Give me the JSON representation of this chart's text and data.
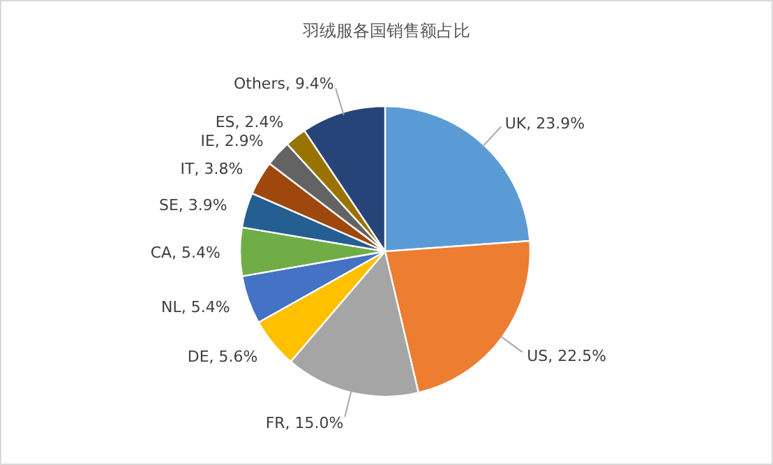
{
  "chart_data": {
    "type": "pie",
    "title": "羽绒服各国销售额占比",
    "categories": [
      "UK",
      "US",
      "FR",
      "DE",
      "NL",
      "CA",
      "SE",
      "IT",
      "IE",
      "ES",
      "Others"
    ],
    "values": [
      23.9,
      22.5,
      15.0,
      5.6,
      5.4,
      5.4,
      3.9,
      3.8,
      2.9,
      2.4,
      9.4
    ],
    "value_labels": [
      "23.9%",
      "22.5%",
      "15.0%",
      "5.6%",
      "5.4%",
      "5.4%",
      "3.9%",
      "3.8%",
      "2.9%",
      "2.4%",
      "9.4%"
    ],
    "colors": [
      "#5b9bd5",
      "#ed7d31",
      "#a5a5a5",
      "#ffc000",
      "#4472c4",
      "#70ad47",
      "#255e91",
      "#9e480e",
      "#636363",
      "#997300",
      "#264478"
    ],
    "data_labels": true
  }
}
